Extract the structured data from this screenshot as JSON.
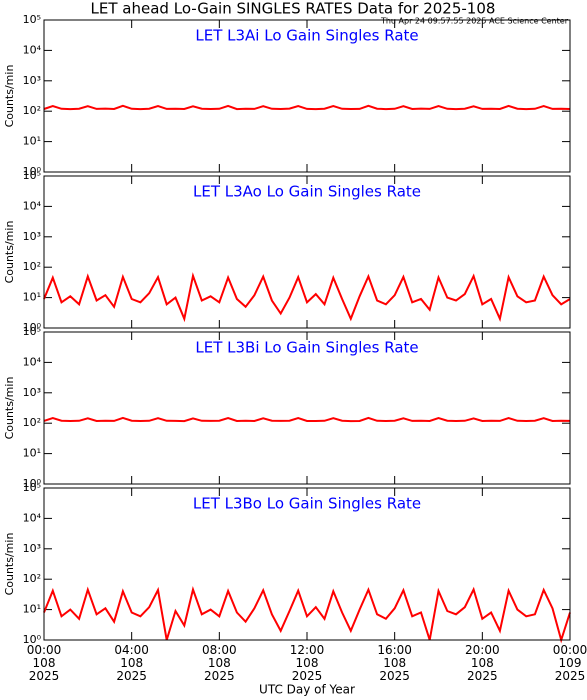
{
  "header": {
    "title": "LET ahead Lo-Gain SINGLES RATES Data for 2025-108",
    "subtitle": "Thu Apr 24 09:57:55 2025 ACE Science Center"
  },
  "x_axis": {
    "label": "UTC Day of Year",
    "xlim": [
      0,
      24
    ],
    "xticks": [
      {
        "value": 0,
        "label": "00:00\n108\n2025"
      },
      {
        "value": 4,
        "label": "04:00\n108\n2025"
      },
      {
        "value": 8,
        "label": "08:00\n108\n2025"
      },
      {
        "value": 12,
        "label": "12:00\n108\n2025"
      },
      {
        "value": 16,
        "label": "16:00\n108\n2025"
      },
      {
        "value": 20,
        "label": "20:00\n108\n2025"
      },
      {
        "value": 24,
        "label": "00:00\n109\n2025"
      }
    ]
  },
  "chart_data": [
    {
      "type": "line",
      "title": "LET L3Ai Lo Gain Singles Rate",
      "ylabel": "Counts/min",
      "log_scale": true,
      "color": "#ff0000",
      "ylim": [
        1,
        100000
      ],
      "yticks": [
        {
          "value": 1,
          "label": "10⁰"
        },
        {
          "value": 10,
          "label": "10¹"
        },
        {
          "value": 100,
          "label": "10²"
        },
        {
          "value": 1000,
          "label": "10³"
        },
        {
          "value": 10000,
          "label": "10⁴"
        },
        {
          "value": 100000,
          "label": "10⁵"
        }
      ],
      "x": [
        0,
        0.4,
        0.8,
        1.2,
        1.6,
        2,
        2.4,
        2.8,
        3.2,
        3.6,
        4,
        4.4,
        4.8,
        5.2,
        5.6,
        6,
        6.4,
        6.8,
        7.2,
        7.6,
        8,
        8.4,
        8.8,
        9.2,
        9.6,
        10,
        10.4,
        10.8,
        11.2,
        11.6,
        12,
        12.4,
        12.8,
        13.2,
        13.6,
        14,
        14.4,
        14.8,
        15.2,
        15.6,
        16,
        16.4,
        16.8,
        17.2,
        17.6,
        18,
        18.4,
        18.8,
        19.2,
        19.6,
        20,
        20.4,
        20.8,
        21.2,
        21.6,
        22,
        22.4,
        22.8,
        23.2,
        23.6,
        24
      ],
      "values": [
        118,
        148,
        120,
        117,
        121,
        146,
        119,
        122,
        118,
        150,
        120,
        117,
        121,
        147,
        119,
        120,
        118,
        145,
        121,
        118,
        120,
        149,
        117,
        121,
        119,
        146,
        120,
        118,
        122,
        148,
        119,
        117,
        121,
        147,
        120,
        118,
        119,
        150,
        121,
        117,
        120,
        146,
        118,
        122,
        119,
        148,
        120,
        117,
        121,
        145,
        119,
        120,
        118,
        149,
        121,
        117,
        120,
        147,
        119,
        121,
        118
      ]
    },
    {
      "type": "line",
      "title": "LET L3Ao Lo Gain Singles Rate",
      "ylabel": "Counts/min",
      "log_scale": true,
      "color": "#ff0000",
      "ylim": [
        1,
        100000
      ],
      "yticks": [
        {
          "value": 1,
          "label": "10⁰"
        },
        {
          "value": 10,
          "label": "10¹"
        },
        {
          "value": 100,
          "label": "10²"
        },
        {
          "value": 1000,
          "label": "10³"
        },
        {
          "value": 10000,
          "label": "10⁴"
        },
        {
          "value": 100000,
          "label": "10⁵"
        }
      ],
      "x": [
        0,
        0.4,
        0.8,
        1.2,
        1.6,
        2,
        2.4,
        2.8,
        3.2,
        3.6,
        4,
        4.4,
        4.8,
        5.2,
        5.6,
        6,
        6.4,
        6.8,
        7.2,
        7.6,
        8,
        8.4,
        8.8,
        9.2,
        9.6,
        10,
        10.4,
        10.8,
        11.2,
        11.6,
        12,
        12.4,
        12.8,
        13.2,
        13.6,
        14,
        14.4,
        14.8,
        15.2,
        15.6,
        16,
        16.4,
        16.8,
        17.2,
        17.6,
        18,
        18.4,
        18.8,
        19.2,
        19.6,
        20,
        20.4,
        20.8,
        21.2,
        21.6,
        22,
        22.4,
        22.8,
        23.2,
        23.6,
        24
      ],
      "values": [
        9,
        45,
        7,
        11,
        6,
        50,
        8,
        12,
        5,
        48,
        9,
        7,
        14,
        47,
        6,
        10,
        2,
        52,
        8,
        11,
        7,
        46,
        9,
        5,
        12,
        49,
        8,
        3,
        10,
        47,
        7,
        13,
        6,
        45,
        9,
        2,
        11,
        50,
        8,
        6,
        12,
        48,
        7,
        9,
        4,
        46,
        10,
        8,
        13,
        51,
        6,
        9,
        2,
        47,
        11,
        7,
        8,
        49,
        12,
        6,
        9
      ]
    },
    {
      "type": "line",
      "title": "LET L3Bi Lo Gain Singles Rate",
      "ylabel": "Counts/min",
      "log_scale": true,
      "color": "#ff0000",
      "ylim": [
        1,
        100000
      ],
      "yticks": [
        {
          "value": 1,
          "label": "10⁰"
        },
        {
          "value": 10,
          "label": "10¹"
        },
        {
          "value": 100,
          "label": "10²"
        },
        {
          "value": 1000,
          "label": "10³"
        },
        {
          "value": 10000,
          "label": "10⁴"
        },
        {
          "value": 100000,
          "label": "10⁵"
        }
      ],
      "x": [
        0,
        0.4,
        0.8,
        1.2,
        1.6,
        2,
        2.4,
        2.8,
        3.2,
        3.6,
        4,
        4.4,
        4.8,
        5.2,
        5.6,
        6,
        6.4,
        6.8,
        7.2,
        7.6,
        8,
        8.4,
        8.8,
        9.2,
        9.6,
        10,
        10.4,
        10.8,
        11.2,
        11.6,
        12,
        12.4,
        12.8,
        13.2,
        13.6,
        14,
        14.4,
        14.8,
        15.2,
        15.6,
        16,
        16.4,
        16.8,
        17.2,
        17.6,
        18,
        18.4,
        18.8,
        19.2,
        19.6,
        20,
        20.4,
        20.8,
        21.2,
        21.6,
        22,
        22.4,
        22.8,
        23.2,
        23.6,
        24
      ],
      "values": [
        119,
        147,
        121,
        118,
        120,
        145,
        118,
        121,
        119,
        149,
        121,
        118,
        120,
        146,
        120,
        119,
        117,
        144,
        120,
        119,
        121,
        148,
        118,
        120,
        118,
        145,
        121,
        119,
        121,
        147,
        118,
        118,
        120,
        146,
        121,
        117,
        118,
        149,
        120,
        118,
        121,
        145,
        119,
        121,
        118,
        147,
        121,
        118,
        120,
        144,
        118,
        121,
        119,
        148,
        120,
        118,
        121,
        146,
        118,
        120,
        119
      ]
    },
    {
      "type": "line",
      "title": "LET L3Bo Lo Gain Singles Rate",
      "ylabel": "Counts/min",
      "log_scale": true,
      "color": "#ff0000",
      "ylim": [
        1,
        100000
      ],
      "yticks": [
        {
          "value": 1,
          "label": "10⁰"
        },
        {
          "value": 10,
          "label": "10¹"
        },
        {
          "value": 100,
          "label": "10²"
        },
        {
          "value": 1000,
          "label": "10³"
        },
        {
          "value": 10000,
          "label": "10⁴"
        },
        {
          "value": 100000,
          "label": "10⁵"
        }
      ],
      "x": [
        0,
        0.4,
        0.8,
        1.2,
        1.6,
        2,
        2.4,
        2.8,
        3.2,
        3.6,
        4,
        4.4,
        4.8,
        5.2,
        5.6,
        6,
        6.4,
        6.8,
        7.2,
        7.6,
        8,
        8.4,
        8.8,
        9.2,
        9.6,
        10,
        10.4,
        10.8,
        11.2,
        11.6,
        12,
        12.4,
        12.8,
        13.2,
        13.6,
        14,
        14.4,
        14.8,
        15.2,
        15.6,
        16,
        16.4,
        16.8,
        17.2,
        17.6,
        18,
        18.4,
        18.8,
        19.2,
        19.6,
        20,
        20.4,
        20.8,
        21.2,
        21.6,
        22,
        22.4,
        22.8,
        23.2,
        23.6,
        24
      ],
      "values": [
        8,
        42,
        6,
        10,
        5,
        45,
        7,
        11,
        4,
        40,
        8,
        6,
        12,
        44,
        1,
        9,
        3,
        46,
        7,
        10,
        6,
        41,
        8,
        4,
        11,
        43,
        7,
        2,
        9,
        42,
        6,
        12,
        5,
        40,
        8,
        2,
        10,
        45,
        7,
        5,
        11,
        43,
        6,
        8,
        1,
        41,
        9,
        7,
        12,
        46,
        5,
        8,
        2,
        42,
        10,
        6,
        7,
        44,
        11,
        1,
        8
      ]
    }
  ]
}
